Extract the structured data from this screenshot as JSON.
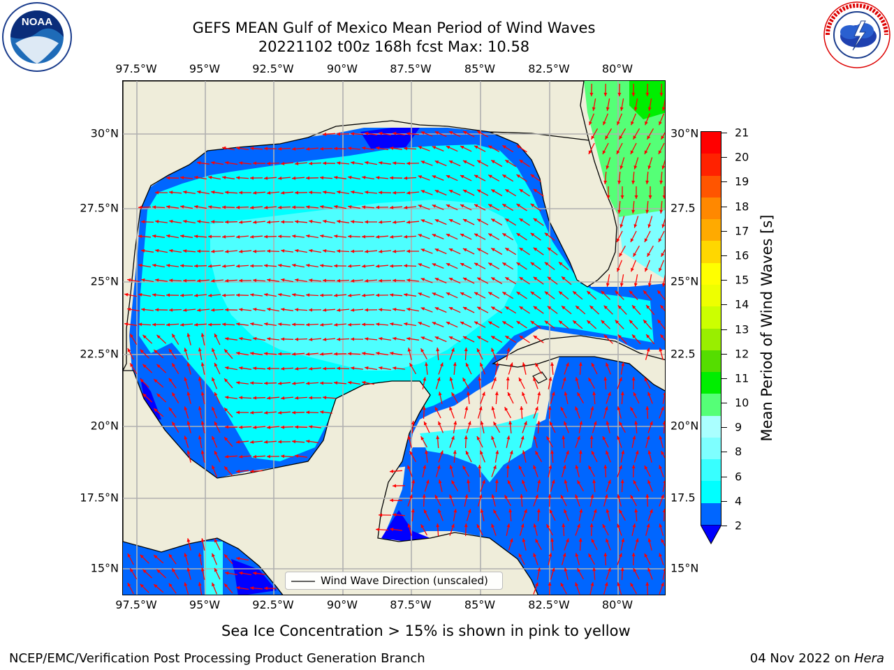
{
  "header": {
    "title_line1": "GEFS MEAN Gulf of Mexico Mean Period of Wind Waves",
    "title_line2": "20221102 t00z 168h fcst   Max: 10.58"
  },
  "logos": {
    "noaa": {
      "text": "NOAA",
      "ring_text": "NATIONAL OCEANIC AND ATMOSPHERIC ADMINISTRATION · U.S. DEPARTMENT OF COMMERCE"
    },
    "nws": {
      "ring_text": "NATIONAL WEATHER SERVICE"
    }
  },
  "axes": {
    "lon_labels": [
      "97.5°W",
      "95°W",
      "92.5°W",
      "90°W",
      "87.5°W",
      "85°W",
      "82.5°W",
      "80°W"
    ],
    "lat_labels_left": [
      "30°N",
      "27.5°N",
      "25°N",
      "22.5°N",
      "20°N",
      "17.5°N",
      "15°N"
    ],
    "lat_labels_right": [
      "30°N",
      "27.5",
      "25°N",
      "22.5",
      "20°N",
      "17.5",
      "15°N"
    ]
  },
  "colorbar": {
    "label": "Mean Period of Wind Waves [s]",
    "ticks": [
      "21",
      "20",
      "19",
      "18",
      "17",
      "16",
      "15",
      "14",
      "13",
      "12",
      "11",
      "10",
      "9",
      "8",
      "6",
      "4",
      "2"
    ],
    "colors_bottom_to_top": [
      "#0066ff",
      "#00ffff",
      "#38ffff",
      "#7effff",
      "#aaffff",
      "#55ff77",
      "#00ee00",
      "#55dd00",
      "#99ee00",
      "#ccff00",
      "#eeff00",
      "#ffff00",
      "#ffd700",
      "#ffaa00",
      "#ff8800",
      "#ff5500",
      "#ff2200",
      "#ff0000"
    ],
    "extend_color": "#0000ff"
  },
  "legend": {
    "label": "Wind Wave Direction (unscaled)"
  },
  "colors": {
    "land": "#efedda",
    "deep_blue": "#0000ff",
    "blue": "#0066ff",
    "cyan": "#00ffff",
    "light_cyan": "#55ffff",
    "green": "#55ff77",
    "bright_green": "#00ee00",
    "arrow": "#ff0000",
    "grid": "#b0b0b0"
  },
  "footer": {
    "note": "Sea Ice Concentration > 15% is shown in pink to yellow",
    "credit": "NCEP/EMC/Verification Post Processing Product Generation Branch",
    "date": "04 Nov 2022 on ",
    "host": "Hera"
  }
}
